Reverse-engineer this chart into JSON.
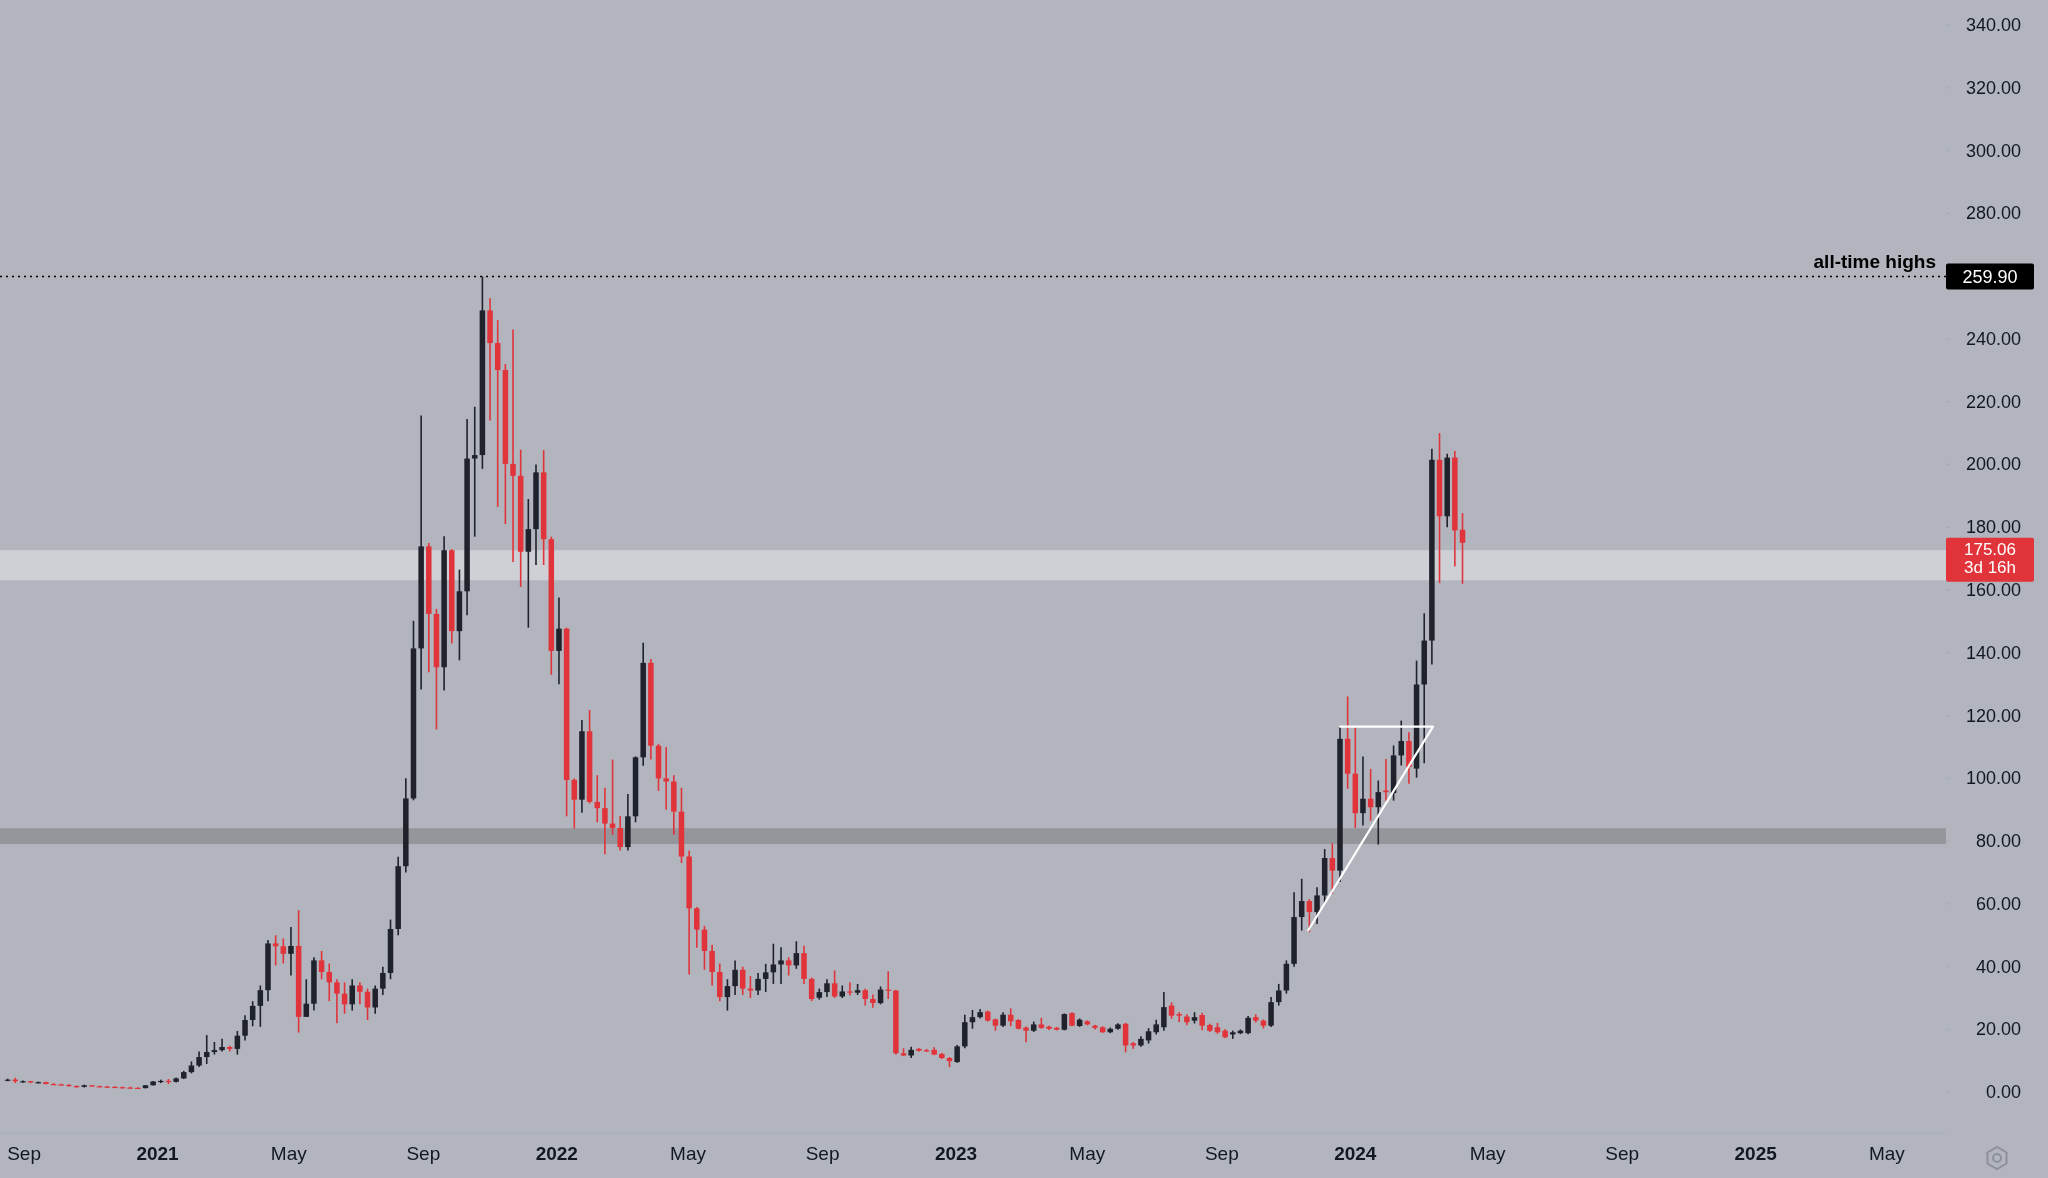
{
  "chart_data": {
    "type": "candlestick",
    "x": [
      "2020-08-17",
      "2020-08-24",
      "2020-08-31",
      "2020-09-07",
      "2020-09-14",
      "2020-09-21",
      "2020-09-28",
      "2020-10-05",
      "2020-10-12",
      "2020-10-19",
      "2020-10-26",
      "2020-11-02",
      "2020-11-09",
      "2020-11-16",
      "2020-11-23",
      "2020-11-30",
      "2020-12-07",
      "2020-12-14",
      "2020-12-21",
      "2020-12-28",
      "2021-01-04",
      "2021-01-11",
      "2021-01-18",
      "2021-01-25",
      "2021-02-01",
      "2021-02-08",
      "2021-02-15",
      "2021-02-22",
      "2021-03-01",
      "2021-03-08",
      "2021-03-15",
      "2021-03-22",
      "2021-03-29",
      "2021-04-05",
      "2021-04-12",
      "2021-04-19",
      "2021-04-26",
      "2021-05-03",
      "2021-05-10",
      "2021-05-17",
      "2021-05-24",
      "2021-05-31",
      "2021-06-07",
      "2021-06-14",
      "2021-06-21",
      "2021-06-28",
      "2021-07-05",
      "2021-07-12",
      "2021-07-19",
      "2021-07-26",
      "2021-08-02",
      "2021-08-09",
      "2021-08-16",
      "2021-08-23",
      "2021-08-30",
      "2021-09-06",
      "2021-09-13",
      "2021-09-20",
      "2021-09-27",
      "2021-10-04",
      "2021-10-11",
      "2021-10-18",
      "2021-10-25",
      "2021-11-01",
      "2021-11-08",
      "2021-11-15",
      "2021-11-22",
      "2021-11-29",
      "2021-12-06",
      "2021-12-13",
      "2021-12-20",
      "2021-12-27",
      "2022-01-03",
      "2022-01-10",
      "2022-01-17",
      "2022-01-24",
      "2022-01-31",
      "2022-02-07",
      "2022-02-14",
      "2022-02-21",
      "2022-02-28",
      "2022-03-07",
      "2022-03-14",
      "2022-03-21",
      "2022-03-28",
      "2022-04-04",
      "2022-04-11",
      "2022-04-18",
      "2022-04-25",
      "2022-05-02",
      "2022-05-09",
      "2022-05-16",
      "2022-05-23",
      "2022-05-30",
      "2022-06-06",
      "2022-06-13",
      "2022-06-20",
      "2022-06-27",
      "2022-07-04",
      "2022-07-11",
      "2022-07-18",
      "2022-07-25",
      "2022-08-01",
      "2022-08-08",
      "2022-08-15",
      "2022-08-22",
      "2022-08-29",
      "2022-09-05",
      "2022-09-12",
      "2022-09-19",
      "2022-09-26",
      "2022-10-03",
      "2022-10-10",
      "2022-10-17",
      "2022-10-24",
      "2022-10-31",
      "2022-11-07",
      "2022-11-14",
      "2022-11-21",
      "2022-11-28",
      "2022-12-05",
      "2022-12-12",
      "2022-12-19",
      "2022-12-26",
      "2023-01-02",
      "2023-01-09",
      "2023-01-16",
      "2023-01-23",
      "2023-01-30",
      "2023-02-06",
      "2023-02-13",
      "2023-02-20",
      "2023-02-27",
      "2023-03-06",
      "2023-03-13",
      "2023-03-20",
      "2023-03-27",
      "2023-04-03",
      "2023-04-10",
      "2023-04-17",
      "2023-04-24",
      "2023-05-01",
      "2023-05-08",
      "2023-05-15",
      "2023-05-22",
      "2023-05-29",
      "2023-06-05",
      "2023-06-12",
      "2023-06-19",
      "2023-06-26",
      "2023-07-03",
      "2023-07-10",
      "2023-07-17",
      "2023-07-24",
      "2023-07-31",
      "2023-08-07",
      "2023-08-14",
      "2023-08-21",
      "2023-08-28",
      "2023-09-04",
      "2023-09-11",
      "2023-09-18",
      "2023-09-25",
      "2023-10-02",
      "2023-10-09",
      "2023-10-16",
      "2023-10-23",
      "2023-10-30",
      "2023-11-06",
      "2023-11-13",
      "2023-11-20",
      "2023-11-27",
      "2023-12-04",
      "2023-12-11",
      "2023-12-18",
      "2023-12-25",
      "2024-01-01",
      "2024-01-08",
      "2024-01-15",
      "2024-01-22",
      "2024-01-29",
      "2024-02-05",
      "2024-02-12",
      "2024-02-19",
      "2024-02-26",
      "2024-03-04",
      "2024-03-11",
      "2024-03-18",
      "2024-03-25",
      "2024-04-01",
      "2024-04-08"
    ],
    "ohlc": [
      [
        3.8,
        4.3,
        3.5,
        4.0
      ],
      [
        4.0,
        4.6,
        2.9,
        3.5
      ],
      [
        3.3,
        3.7,
        3.0,
        3.5
      ],
      [
        3.5,
        3.6,
        2.9,
        3.1
      ],
      [
        3.0,
        3.4,
        2.8,
        3.2
      ],
      [
        3.2,
        3.3,
        2.5,
        2.6
      ],
      [
        2.6,
        2.9,
        2.4,
        2.5
      ],
      [
        2.5,
        2.7,
        2.2,
        2.3
      ],
      [
        2.3,
        2.6,
        1.8,
        2.0
      ],
      [
        2.0,
        2.1,
        1.4,
        1.6
      ],
      [
        1.7,
        2.4,
        1.5,
        2.2
      ],
      [
        2.2,
        2.3,
        1.8,
        1.9
      ],
      [
        1.9,
        2.1,
        1.6,
        1.8
      ],
      [
        1.8,
        2.0,
        1.5,
        1.7
      ],
      [
        1.7,
        1.9,
        1.4,
        1.6
      ],
      [
        1.6,
        1.8,
        1.2,
        1.4
      ],
      [
        1.5,
        1.7,
        1.2,
        1.4
      ],
      [
        1.4,
        1.6,
        1.1,
        1.3
      ],
      [
        1.3,
        2.3,
        1.2,
        2.2
      ],
      [
        2.2,
        3.6,
        2.1,
        3.4
      ],
      [
        3.4,
        4.0,
        2.9,
        3.6
      ],
      [
        3.6,
        4.2,
        2.6,
        3.3
      ],
      [
        3.3,
        4.7,
        3.1,
        4.4
      ],
      [
        4.4,
        6.8,
        4.2,
        6.4
      ],
      [
        6.4,
        9.8,
        6.0,
        8.5
      ],
      [
        8.5,
        13,
        8,
        11.2
      ],
      [
        11.2,
        18.2,
        9,
        12.8
      ],
      [
        12.8,
        16,
        12,
        13.4
      ],
      [
        13.4,
        17,
        13,
        14.4
      ],
      [
        14.4,
        14.8,
        13,
        13.8
      ],
      [
        13.8,
        19.5,
        12,
        18
      ],
      [
        18,
        24.5,
        16.5,
        23
      ],
      [
        23,
        29,
        21,
        27.5
      ],
      [
        27.5,
        34,
        20.8,
        32.5
      ],
      [
        32.5,
        48.5,
        29,
        47.4
      ],
      [
        47.4,
        50,
        40.4,
        46.5
      ],
      [
        46.5,
        49,
        41,
        44.1
      ],
      [
        44.1,
        52.6,
        37.2,
        46.6
      ],
      [
        46.6,
        58,
        19,
        24
      ],
      [
        24,
        36,
        24,
        28.2
      ],
      [
        28.2,
        43,
        26,
        42
      ],
      [
        42,
        45,
        36,
        38.3
      ],
      [
        38.3,
        41,
        29,
        35
      ],
      [
        35,
        36,
        22,
        31.4
      ],
      [
        31.4,
        35,
        25,
        28
      ],
      [
        28,
        36,
        26,
        34
      ],
      [
        34,
        35,
        28,
        32
      ],
      [
        32,
        33,
        23,
        27
      ],
      [
        27,
        34,
        25,
        33
      ],
      [
        33,
        40,
        31,
        38
      ],
      [
        38,
        55,
        36,
        52
      ],
      [
        52,
        75,
        50,
        72
      ],
      [
        72,
        100,
        70,
        93.6
      ],
      [
        93.6,
        150.2,
        93,
        141.4
      ],
      [
        141.4,
        215.6,
        128.3,
        173.9
      ],
      [
        173.9,
        175,
        133.8,
        152.4
      ],
      [
        152.4,
        154,
        115.6,
        135.4
      ],
      [
        135.4,
        177.1,
        128,
        172.7
      ],
      [
        172.7,
        173,
        143,
        146.9
      ],
      [
        146.9,
        166.5,
        137.6,
        159.6
      ],
      [
        159.6,
        214.5,
        152,
        201.9
      ],
      [
        201.9,
        218.4,
        177,
        203
      ],
      [
        203,
        259.9,
        198.6,
        249.1
      ],
      [
        249.1,
        253,
        214,
        238.7
      ],
      [
        238.7,
        246,
        186.5,
        230.1
      ],
      [
        230.1,
        232,
        181,
        200.2
      ],
      [
        200.2,
        243,
        168.9,
        196.4
      ],
      [
        196.4,
        204.7,
        161,
        172.2
      ],
      [
        172.2,
        189,
        148,
        179.4
      ],
      [
        179.4,
        200,
        168,
        197.5
      ],
      [
        197.5,
        204.6,
        168,
        176.2
      ],
      [
        176.2,
        177,
        133,
        140.6
      ],
      [
        140.6,
        157.6,
        130,
        147.7
      ],
      [
        147.7,
        148,
        87.9,
        99.5
      ],
      [
        99.5,
        100,
        84,
        93.2
      ],
      [
        93.2,
        118.6,
        89,
        115
      ],
      [
        115,
        121.8,
        92,
        92.5
      ],
      [
        92.5,
        101,
        86,
        90.5
      ],
      [
        90.5,
        97,
        75.8,
        85.6
      ],
      [
        85.6,
        106,
        82,
        84.2
      ],
      [
        84.2,
        88,
        77,
        78.1
      ],
      [
        78.1,
        95,
        77,
        87.9
      ],
      [
        87.9,
        107,
        86,
        106.7
      ],
      [
        106.7,
        143.2,
        104,
        136.8
      ],
      [
        136.8,
        138,
        106,
        110.4
      ],
      [
        110.4,
        111,
        96,
        100
      ],
      [
        100,
        110,
        90,
        99
      ],
      [
        99,
        101,
        82,
        89.4
      ],
      [
        89.4,
        97,
        73,
        75.1
      ],
      [
        75.1,
        77,
        37.5,
        58.6
      ],
      [
        58.6,
        59,
        46,
        51.8
      ],
      [
        51.8,
        53,
        39,
        45
      ],
      [
        45,
        47,
        34,
        38.3
      ],
      [
        38.3,
        41,
        29,
        30.3
      ],
      [
        30.3,
        36,
        26,
        33.8
      ],
      [
        33.8,
        42,
        31,
        39
      ],
      [
        39,
        40,
        31,
        33
      ],
      [
        33,
        37,
        30,
        32.4
      ],
      [
        32.4,
        38,
        31,
        36.1
      ],
      [
        36.1,
        40.9,
        31.9,
        38.2
      ],
      [
        38.2,
        47.3,
        34.5,
        40.7
      ],
      [
        40.7,
        46.2,
        34.5,
        42
      ],
      [
        42,
        43,
        37.2,
        40.4
      ],
      [
        40.4,
        48.1,
        39.3,
        44.3
      ],
      [
        44.3,
        46.7,
        34.5,
        36.1
      ],
      [
        36.1,
        36.5,
        29,
        29.7
      ],
      [
        30.1,
        33,
        29.5,
        31.9
      ],
      [
        31.9,
        36,
        30.3,
        34.7
      ],
      [
        34.7,
        38.8,
        30,
        30.5
      ],
      [
        30.5,
        34,
        30,
        32.1
      ],
      [
        32.1,
        35,
        30.8,
        31.7
      ],
      [
        31.7,
        34.5,
        31,
        32.5
      ],
      [
        32.5,
        33,
        27.6,
        29.7
      ],
      [
        29.7,
        31.1,
        26.9,
        28.4
      ],
      [
        28.4,
        33.7,
        28,
        32.7
      ],
      [
        32.7,
        38.5,
        29.7,
        32.4
      ],
      [
        32.4,
        32.6,
        12,
        12.4
      ],
      [
        12.4,
        14,
        11.5,
        11.7
      ],
      [
        11.7,
        14.5,
        10.9,
        13.5
      ],
      [
        13.8,
        14.1,
        13,
        13.2
      ],
      [
        13.4,
        13.8,
        12.8,
        13.1
      ],
      [
        13.5,
        14.3,
        11.8,
        12
      ],
      [
        12.2,
        12.5,
        10.6,
        10.9
      ],
      [
        10.9,
        11.2,
        8,
        9.9
      ],
      [
        9.6,
        15,
        9.4,
        14.6
      ],
      [
        14.6,
        24.7,
        14,
        22.3
      ],
      [
        22.3,
        26.2,
        20.2,
        23.9
      ],
      [
        23.9,
        26.5,
        23.5,
        25.5
      ],
      [
        25.7,
        26,
        22.5,
        22.8
      ],
      [
        23.2,
        23.5,
        19.6,
        21.2
      ],
      [
        21.2,
        25.5,
        20.8,
        24.7
      ],
      [
        24.7,
        26.7,
        21,
        22.6
      ],
      [
        23,
        23.3,
        20,
        20.2
      ],
      [
        20.6,
        20.9,
        15.9,
        19.6
      ],
      [
        19.6,
        22.5,
        19.2,
        21.6
      ],
      [
        21.6,
        23.7,
        20.2,
        20.5
      ],
      [
        20.9,
        21.2,
        19.8,
        20.2
      ],
      [
        20.5,
        20.8,
        19.7,
        19.9
      ],
      [
        19.9,
        25.1,
        19.7,
        24.9
      ],
      [
        25.2,
        25.5,
        21,
        21.2
      ],
      [
        21.1,
        23.5,
        20.8,
        23.1
      ],
      [
        22.6,
        22.9,
        21.3,
        21.6
      ],
      [
        21.2,
        21.5,
        20,
        20.5
      ],
      [
        20.7,
        21,
        18.9,
        19.1
      ],
      [
        19.1,
        20.6,
        18.8,
        20.2
      ],
      [
        20.2,
        22,
        19.9,
        21.6
      ],
      [
        21.8,
        22.1,
        12.7,
        14.9
      ],
      [
        15.6,
        16,
        13.8,
        14.9
      ],
      [
        14.9,
        17.8,
        14.5,
        17
      ],
      [
        16.5,
        20.4,
        15.5,
        19.4
      ],
      [
        19.1,
        23.1,
        18.4,
        21.6
      ],
      [
        20.7,
        31.9,
        19.6,
        27.1
      ],
      [
        27.6,
        28.6,
        23.4,
        24.4
      ],
      [
        24.9,
        25.5,
        22.4,
        24.4
      ],
      [
        24.1,
        24.8,
        21.3,
        22.3
      ],
      [
        22.8,
        25.5,
        21.9,
        23.9
      ],
      [
        24.6,
        25.3,
        19.7,
        21.2
      ],
      [
        21.4,
        21.8,
        19.2,
        19.6
      ],
      [
        20.7,
        22.1,
        18.6,
        19.1
      ],
      [
        19.6,
        20.1,
        17.2,
        17.5
      ],
      [
        18.4,
        19.6,
        17,
        19.1
      ],
      [
        18.8,
        20,
        18.5,
        19.6
      ],
      [
        18.8,
        24.3,
        18.5,
        23.7
      ],
      [
        23.9,
        24.8,
        22.2,
        22.8
      ],
      [
        22.8,
        23.2,
        20.3,
        21.2
      ],
      [
        21.2,
        30.3,
        20.8,
        28.7
      ],
      [
        28.7,
        34.5,
        27.6,
        32.4
      ],
      [
        32.4,
        42,
        31.4,
        40.9
      ],
      [
        40.9,
        63.7,
        40,
        55.8
      ],
      [
        55.8,
        68,
        51.5,
        60.9
      ],
      [
        60.9,
        61.5,
        51,
        57.4
      ],
      [
        57.4,
        65.3,
        53.6,
        62.7
      ],
      [
        62.7,
        77.5,
        60,
        74.6
      ],
      [
        74.6,
        79.3,
        63.2,
        70.6
      ],
      [
        70.6,
        116.5,
        67,
        112.6
      ],
      [
        112.6,
        126.1,
        96.7,
        101.5
      ],
      [
        101.5,
        116.5,
        84.2,
        88.9
      ],
      [
        88.9,
        107,
        85,
        93.5
      ],
      [
        93.5,
        103,
        86.5,
        90.8
      ],
      [
        90.8,
        99.3,
        78.9,
        95.6
      ],
      [
        96.1,
        106.2,
        92.9,
        95.6
      ],
      [
        95.3,
        110.5,
        92.9,
        107.3
      ],
      [
        107.3,
        118.4,
        104.1,
        111.9
      ],
      [
        111.9,
        114.7,
        98.3,
        103.6
      ],
      [
        103.1,
        137.5,
        100.2,
        129.9
      ],
      [
        129.9,
        152.6,
        104.8,
        143.9
      ],
      [
        143.9,
        205,
        136.3,
        201.5
      ],
      [
        201.5,
        210,
        162.2,
        183.5
      ],
      [
        183.5,
        203.4,
        180,
        202.2
      ],
      [
        202.2,
        204.3,
        167.5,
        179
      ],
      [
        179.2,
        184.5,
        162,
        175.06
      ]
    ],
    "series": [
      {
        "type": "line",
        "x": [
          "2023-11-19",
          "2024-03-12",
          "2023-12-18"
        ],
        "values": [
          51.6,
          116.5,
          116.5
        ],
        "color": "#ffffff"
      }
    ],
    "xlim": [
      "2020-08-10",
      "2025-06-24"
    ],
    "xticks": [
      {
        "value": "2020-09-01",
        "label": "Sep"
      },
      {
        "value": "2021-01-01",
        "label": "2021"
      },
      {
        "value": "2021-05-01",
        "label": "May"
      },
      {
        "value": "2021-09-01",
        "label": "Sep"
      },
      {
        "value": "2022-01-01",
        "label": "2022"
      },
      {
        "value": "2022-05-01",
        "label": "May"
      },
      {
        "value": "2022-09-01",
        "label": "Sep"
      },
      {
        "value": "2023-01-01",
        "label": "2023"
      },
      {
        "value": "2023-05-01",
        "label": "May"
      },
      {
        "value": "2023-09-01",
        "label": "Sep"
      },
      {
        "value": "2024-01-01",
        "label": "2024"
      },
      {
        "value": "2024-05-01",
        "label": "May"
      },
      {
        "value": "2024-09-01",
        "label": "Sep"
      },
      {
        "value": "2025-01-01",
        "label": "2025"
      },
      {
        "value": "2025-05-01",
        "label": "May"
      }
    ],
    "ylim": [
      -13,
      348
    ],
    "yticks": [
      {
        "value": 0,
        "label": "0.00"
      },
      {
        "value": 20,
        "label": "20.00"
      },
      {
        "value": 40,
        "label": "40.00"
      },
      {
        "value": 60,
        "label": "60.00"
      },
      {
        "value": 80,
        "label": "80.00"
      },
      {
        "value": 100,
        "label": "100.00"
      },
      {
        "value": 120,
        "label": "120.00"
      },
      {
        "value": 140,
        "label": "140.00"
      },
      {
        "value": 160,
        "label": "160.00"
      },
      {
        "value": 180,
        "label": "180.00"
      },
      {
        "value": 200,
        "label": "200.00"
      },
      {
        "value": 220,
        "label": "220.00"
      },
      {
        "value": 240,
        "label": "240.00"
      },
      {
        "value": 260,
        "label": null
      },
      {
        "value": 280,
        "label": "280.00"
      },
      {
        "value": 300,
        "label": "300.00"
      },
      {
        "value": 320,
        "label": "320.00"
      },
      {
        "value": 340,
        "label": "340.00"
      }
    ],
    "ref_lines": [
      {
        "axis": "y",
        "value": 259.9,
        "label": "all-time highs",
        "color": "#000000",
        "line_style": "dotted"
      }
    ],
    "bands": [
      {
        "axis": "y",
        "from": 163.1,
        "to": 172.7,
        "color": "#d3d5db"
      },
      {
        "axis": "y",
        "from": 79.1,
        "to": 84.1,
        "color": "#8e9097"
      }
    ],
    "annotations": [
      "259.90",
      "175.06",
      "3d 16h"
    ]
  }
}
